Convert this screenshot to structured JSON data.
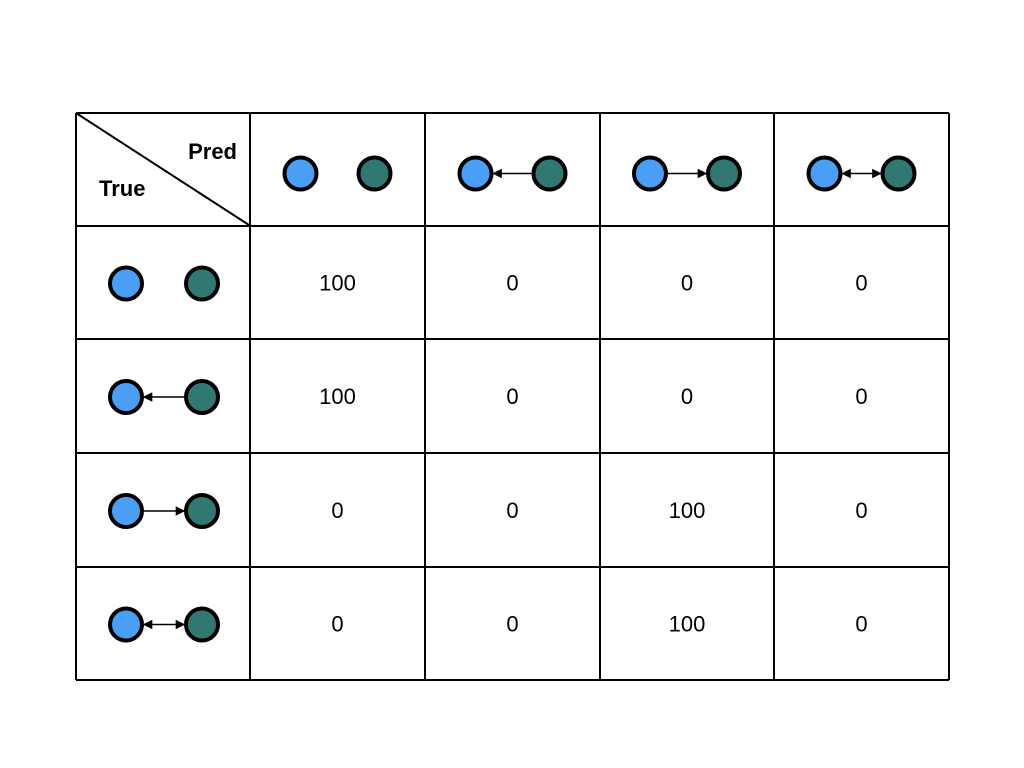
{
  "header": {
    "corner_top": "Pred",
    "corner_bottom": "True"
  },
  "columns": [
    {
      "relation": "none"
    },
    {
      "relation": "b-to-a"
    },
    {
      "relation": "a-to-b"
    },
    {
      "relation": "bidirectional"
    }
  ],
  "rows": [
    {
      "relation": "none",
      "values": [
        "100",
        "0",
        "0",
        "0"
      ]
    },
    {
      "relation": "b-to-a",
      "values": [
        "100",
        "0",
        "0",
        "0"
      ]
    },
    {
      "relation": "a-to-b",
      "values": [
        "0",
        "0",
        "100",
        "0"
      ]
    },
    {
      "relation": "bidirectional",
      "values": [
        "0",
        "0",
        "100",
        "0"
      ]
    }
  ],
  "colors": {
    "node_a": "#4a9ff5",
    "node_b": "#317873",
    "border": "#000000"
  }
}
